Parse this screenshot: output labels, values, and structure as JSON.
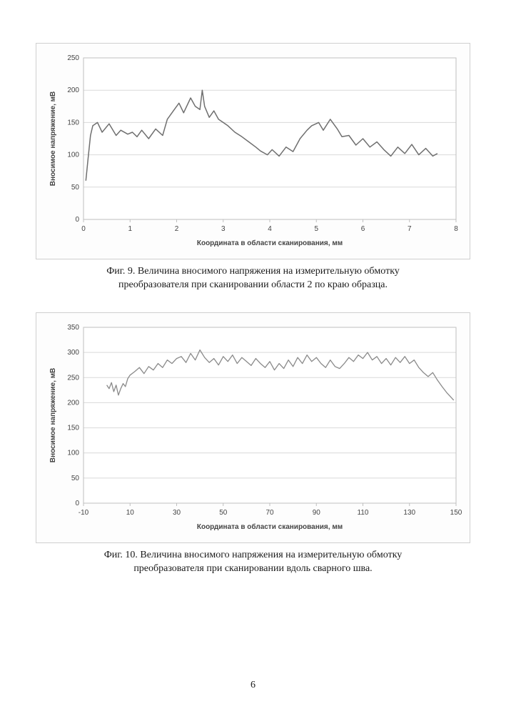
{
  "page_number": "6",
  "fig9": {
    "type": "line",
    "caption_line1": "Фиг. 9. Величина вносимого напряжения на измерительную обмотку",
    "caption_line2": "преобразователя при сканировании области 2 по краю образца.",
    "x_label": "Координата в области сканирования, мм",
    "y_label": "Вносимое напряжение, мВ",
    "x_ticks": [
      0,
      1,
      2,
      3,
      4,
      5,
      6,
      7,
      8
    ],
    "y_ticks": [
      0,
      50,
      100,
      150,
      200,
      250
    ],
    "xlim": [
      0,
      8
    ],
    "ylim": [
      0,
      250
    ],
    "line_color": "#6f6f6f",
    "line_width": 1.5,
    "grid_color": "#d9d9d9",
    "border_color": "#bfbfbf",
    "background_color": "#ffffff",
    "axis_font_size": 10,
    "label_font_size": 10,
    "data_x": [
      0.05,
      0.1,
      0.15,
      0.2,
      0.3,
      0.4,
      0.55,
      0.7,
      0.8,
      0.95,
      1.05,
      1.15,
      1.25,
      1.4,
      1.55,
      1.7,
      1.8,
      1.95,
      2.05,
      2.15,
      2.3,
      2.4,
      2.5,
      2.55,
      2.6,
      2.7,
      2.8,
      2.9,
      3.0,
      3.1,
      3.25,
      3.4,
      3.55,
      3.7,
      3.8,
      3.95,
      4.05,
      4.2,
      4.35,
      4.5,
      4.65,
      4.8,
      4.9,
      5.05,
      5.15,
      5.3,
      5.45,
      5.55,
      5.7,
      5.85,
      6.0,
      6.15,
      6.3,
      6.45,
      6.6,
      6.75,
      6.9,
      7.05,
      7.2,
      7.35,
      7.5,
      7.6
    ],
    "data_y": [
      60,
      95,
      130,
      145,
      150,
      135,
      148,
      130,
      138,
      132,
      135,
      128,
      138,
      125,
      140,
      130,
      155,
      170,
      180,
      165,
      188,
      175,
      170,
      200,
      175,
      158,
      168,
      155,
      150,
      145,
      135,
      128,
      120,
      112,
      106,
      100,
      108,
      98,
      112,
      105,
      125,
      138,
      145,
      150,
      138,
      155,
      140,
      128,
      130,
      115,
      125,
      112,
      120,
      108,
      98,
      112,
      102,
      116,
      100,
      110,
      98,
      102
    ]
  },
  "fig10": {
    "type": "line",
    "caption_line1": "Фиг. 10. Величина вносимого напряжения на измерительную обмотку",
    "caption_line2": "преобразователя при сканировании вдоль сварного шва.",
    "x_label": "Координата в области сканирования, мм",
    "y_label": "Вносимое напряжение, мВ",
    "x_ticks": [
      -10,
      10,
      30,
      50,
      70,
      90,
      110,
      130,
      150
    ],
    "y_ticks": [
      0,
      50,
      100,
      150,
      200,
      250,
      300,
      350
    ],
    "xlim": [
      -10,
      150
    ],
    "ylim": [
      0,
      350
    ],
    "line_color": "#8a8a8a",
    "line_width": 1.3,
    "grid_color": "#d9d9d9",
    "border_color": "#bfbfbf",
    "background_color": "#ffffff",
    "axis_font_size": 10,
    "label_font_size": 10,
    "data_x": [
      0,
      1,
      2,
      3,
      4,
      5,
      6,
      7,
      8,
      9,
      10,
      12,
      14,
      16,
      18,
      20,
      22,
      24,
      26,
      28,
      30,
      32,
      34,
      36,
      38,
      40,
      42,
      44,
      46,
      48,
      50,
      52,
      54,
      56,
      58,
      60,
      62,
      64,
      66,
      68,
      70,
      72,
      74,
      76,
      78,
      80,
      82,
      84,
      86,
      88,
      90,
      92,
      94,
      96,
      98,
      100,
      102,
      104,
      106,
      108,
      110,
      112,
      114,
      116,
      118,
      120,
      122,
      124,
      126,
      128,
      130,
      132,
      134,
      136,
      138,
      140,
      142,
      144,
      146,
      148,
      149
    ],
    "data_y": [
      235,
      228,
      240,
      222,
      235,
      215,
      228,
      238,
      232,
      248,
      255,
      262,
      270,
      258,
      272,
      265,
      278,
      270,
      285,
      278,
      288,
      292,
      280,
      298,
      285,
      305,
      290,
      280,
      288,
      275,
      292,
      282,
      295,
      278,
      290,
      282,
      274,
      288,
      278,
      270,
      282,
      265,
      278,
      268,
      285,
      272,
      290,
      278,
      295,
      282,
      290,
      278,
      270,
      285,
      272,
      268,
      278,
      290,
      282,
      295,
      288,
      300,
      285,
      292,
      278,
      288,
      275,
      290,
      280,
      292,
      278,
      285,
      270,
      260,
      252,
      260,
      245,
      232,
      220,
      210,
      205
    ]
  }
}
